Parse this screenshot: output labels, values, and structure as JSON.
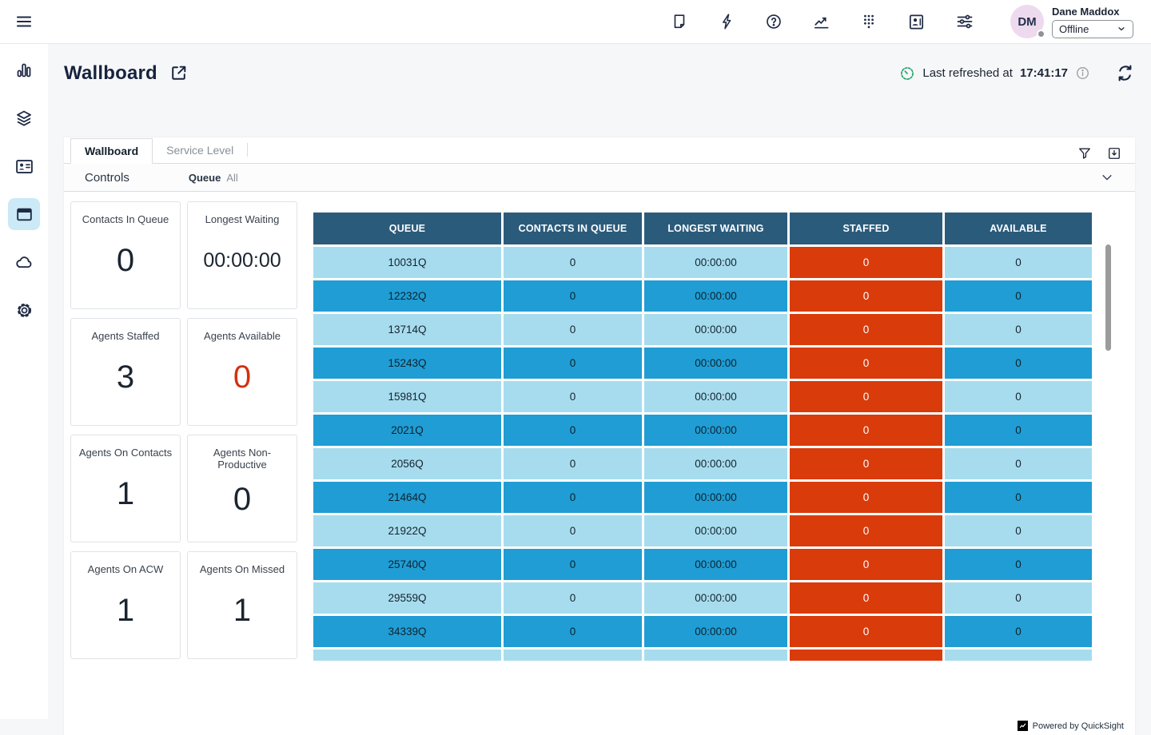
{
  "topbar": {
    "icons": [
      "note-icon",
      "lightning-icon",
      "help-icon",
      "line-chart-icon",
      "dialpad-icon",
      "contact-card-icon",
      "sliders-icon"
    ],
    "user": {
      "initials": "DM",
      "name": "Dane Maddox",
      "status": "Offline"
    }
  },
  "sidebar": {
    "icons": [
      "menu-icon",
      "bar-chart-icon",
      "layers-icon",
      "id-card-icon",
      "browser-window-icon",
      "cloud-icon",
      "gear-icon"
    ],
    "active_item": "browser-window-icon"
  },
  "header": {
    "title": "Wallboard",
    "last_refreshed_label": "Last refreshed at",
    "last_refreshed_time": "17:41:17"
  },
  "panel": {
    "tabs": [
      {
        "label": "Wallboard",
        "active": true
      },
      {
        "label": "Service Level",
        "active": false
      }
    ],
    "controls": {
      "label": "Controls",
      "filter_name": "Queue",
      "filter_value": "All"
    }
  },
  "kpis": [
    {
      "label": "Contacts In Queue",
      "value": "0"
    },
    {
      "label": "Longest Waiting",
      "value": "00:00:00"
    },
    {
      "label": "Agents Staffed",
      "value": "3"
    },
    {
      "label": "Agents Available",
      "value": "0",
      "value_color": "#d13212"
    },
    {
      "label": "Agents On Contacts",
      "value": "1"
    },
    {
      "label": "Agents Non-Productive",
      "value": "0"
    },
    {
      "label": "Agents On ACW",
      "value": "1"
    },
    {
      "label": "Agents On Missed",
      "value": "1"
    }
  ],
  "table": {
    "columns": [
      "QUEUE",
      "CONTACTS IN QUEUE",
      "LONGEST WAITING",
      "STAFFED",
      "AVAILABLE"
    ],
    "rows": [
      [
        "10031Q",
        "0",
        "00:00:00",
        "0",
        "0"
      ],
      [
        "12232Q",
        "0",
        "00:00:00",
        "0",
        "0"
      ],
      [
        "13714Q",
        "0",
        "00:00:00",
        "0",
        "0"
      ],
      [
        "15243Q",
        "0",
        "00:00:00",
        "0",
        "0"
      ],
      [
        "15981Q",
        "0",
        "00:00:00",
        "0",
        "0"
      ],
      [
        "2021Q",
        "0",
        "00:00:00",
        "0",
        "0"
      ],
      [
        "2056Q",
        "0",
        "00:00:00",
        "0",
        "0"
      ],
      [
        "21464Q",
        "0",
        "00:00:00",
        "0",
        "0"
      ],
      [
        "21922Q",
        "0",
        "00:00:00",
        "0",
        "0"
      ],
      [
        "25740Q",
        "0",
        "00:00:00",
        "0",
        "0"
      ],
      [
        "29559Q",
        "0",
        "00:00:00",
        "0",
        "0"
      ],
      [
        "34339Q",
        "0",
        "00:00:00",
        "0",
        "0"
      ],
      [
        "",
        "",
        "",
        "",
        ""
      ]
    ]
  },
  "footer": {
    "powered_by": "Powered by QuickSight"
  },
  "colors": {
    "header_bg": "#2b5b7b",
    "row_light": "#a7dcee",
    "row_dark": "#209dd4",
    "staffed": "#d93b0b",
    "accent_value": "#d13212",
    "refresh_green": "#21a46a",
    "active_nav_bg": "#cbe9f6"
  }
}
